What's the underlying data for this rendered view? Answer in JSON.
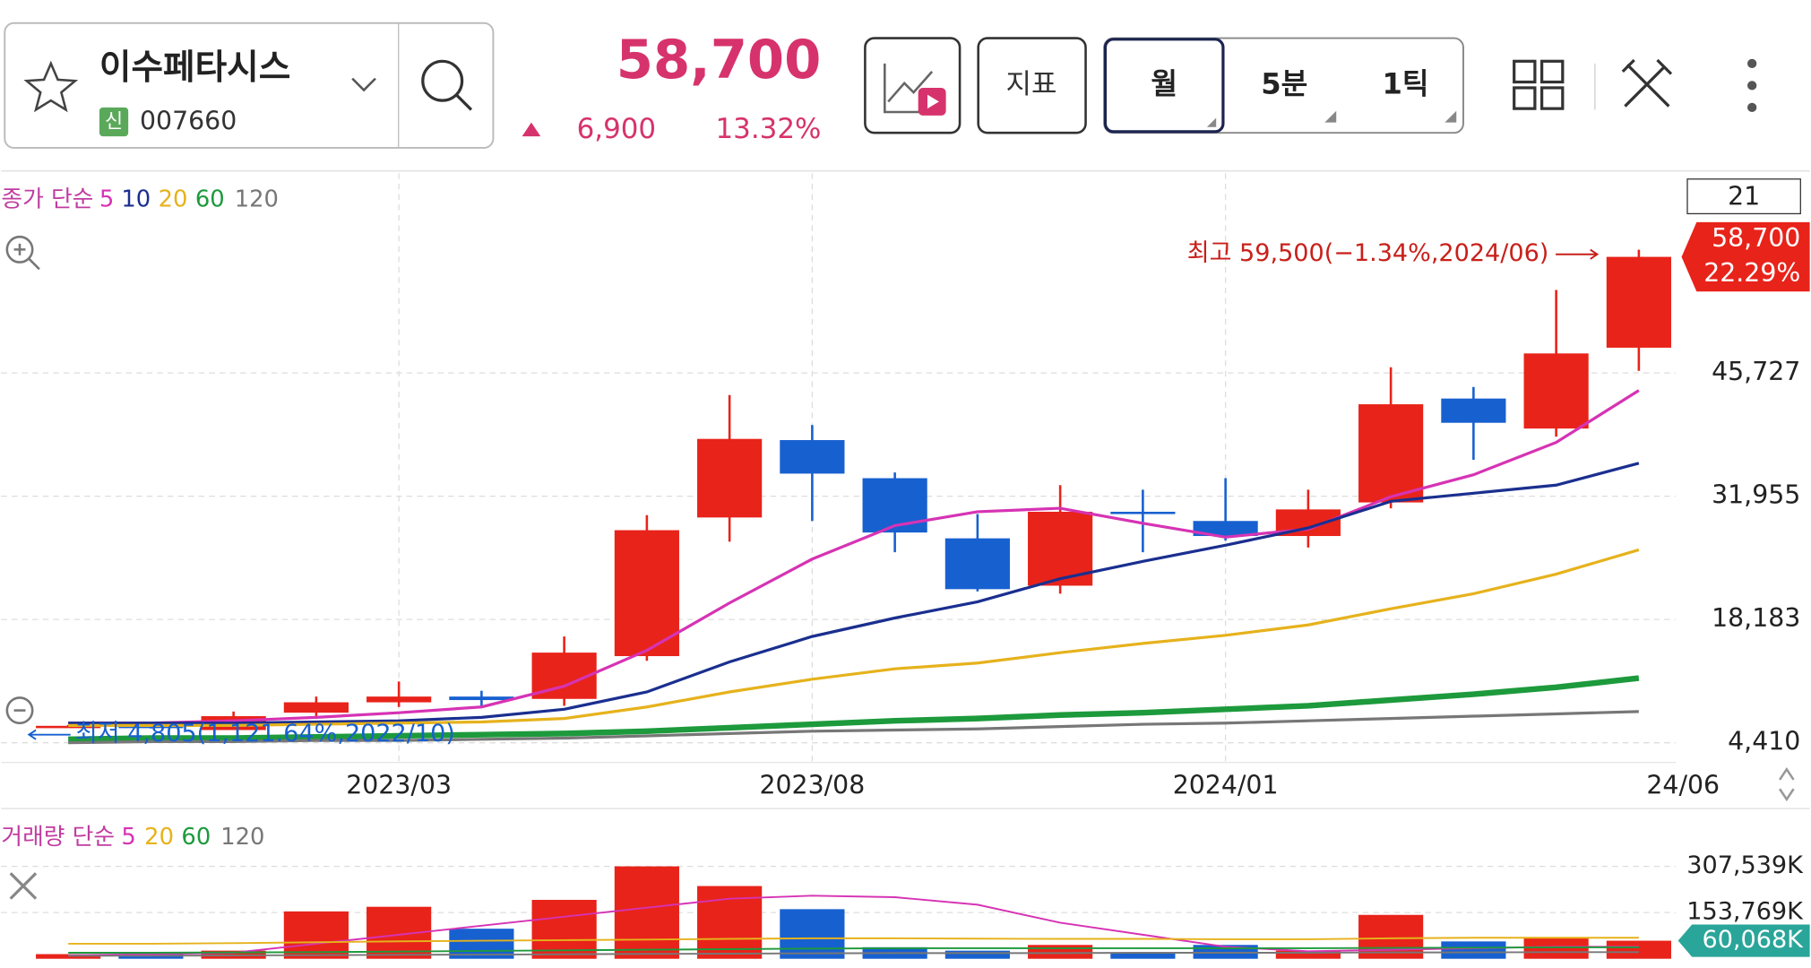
{
  "header": {
    "name": "이수페타시스",
    "badge": "신",
    "code": "007660",
    "price": "58,700",
    "change": "6,900",
    "change_pct": "13.32%"
  },
  "toolbar": {
    "indicator": "지표",
    "periods": [
      "월",
      "5분",
      "1틱"
    ]
  },
  "chart_data": {
    "type": "candlestick",
    "categories": [
      null,
      null,
      null,
      null,
      "2023/03",
      null,
      null,
      null,
      null,
      "2023/08",
      null,
      null,
      null,
      null,
      "2024/01",
      null,
      null,
      null,
      null,
      "24/06"
    ],
    "open": [
      6200,
      6300,
      5830,
      7770,
      8930,
      9570,
      9310,
      14090,
      29580,
      38230,
      33970,
      27250,
      21960,
      30220,
      29190,
      27510,
      31260,
      42870,
      39520,
      48550
    ],
    "high": [
      6400,
      6500,
      7900,
      9570,
      11250,
      10220,
      16280,
      29840,
      43260,
      39900,
      34610,
      29970,
      33190,
      32680,
      33970,
      32680,
      46360,
      44160,
      55000,
      59500
    ],
    "low": [
      6100,
      6000,
      5830,
      7380,
      8410,
      8410,
      8540,
      13570,
      26870,
      29190,
      25700,
      21320,
      21060,
      25700,
      27000,
      26220,
      30610,
      36030,
      38610,
      45970
    ],
    "close": [
      6300,
      6200,
      7380,
      8930,
      9570,
      9180,
      14480,
      28160,
      38360,
      34480,
      27900,
      21570,
      30220,
      29970,
      27510,
      30480,
      42230,
      40160,
      47910,
      58700
    ],
    "up_color": "#e8231a",
    "down_color": "#1760d0",
    "ylim": [
      2216,
      68040
    ],
    "yticks": [
      {
        "value": 4410,
        "label": "4,410"
      },
      {
        "value": 18183,
        "label": "18,183"
      },
      {
        "value": 31955,
        "label": "31,955"
      },
      {
        "value": 45727,
        "label": "45,727"
      }
    ],
    "grid": true,
    "ma_label": "종가 단순",
    "moving_averages": [
      {
        "name": "5",
        "color": "#d633b4",
        "values": [
          6604,
          6604,
          6862,
          7250,
          7766,
          8411,
          10734,
          14736,
          20027,
          24932,
          28675,
          30224,
          30611,
          28933,
          27384,
          28288,
          31902,
          34354,
          37968,
          43776
        ]
      },
      {
        "name": "10",
        "color": "#1a2f8f",
        "values": [
          6604,
          6604,
          6604,
          6733,
          6862,
          7250,
          8153,
          10089,
          13445,
          16284,
          18350,
          20157,
          22739,
          24675,
          26481,
          28417,
          31386,
          32289,
          33193,
          35645
        ]
      },
      {
        "name": "20",
        "color": "#e6b21c",
        "values": [
          6346,
          6346,
          6346,
          6475,
          6604,
          6733,
          7120,
          8411,
          10089,
          11509,
          12670,
          13316,
          14478,
          15510,
          16414,
          17575,
          19382,
          21060,
          23254,
          25965
        ]
      },
      {
        "name": "60",
        "color": "#1d9a3c",
        "values": [
          4797,
          4926,
          4926,
          5055,
          5184,
          5313,
          5443,
          5701,
          6088,
          6475,
          6862,
          7120,
          7507,
          7766,
          8153,
          8540,
          9186,
          9831,
          10605,
          11638
        ]
      },
      {
        "name": "120",
        "color": "#777777",
        "values": [
          4410,
          4539,
          4539,
          4668,
          4668,
          4797,
          4926,
          5184,
          5443,
          5701,
          5830,
          5959,
          6217,
          6475,
          6604,
          6862,
          7120,
          7378,
          7637,
          7895
        ]
      }
    ],
    "high_label": "최고 59,500(−1.34%,2024/06)",
    "low_label": "최저 4,805(1,121.64%,2022/10)",
    "last_price": {
      "value": 58700,
      "label": "58,700"
    },
    "last_change_label": "22.29%",
    "period_box": "21",
    "volume": {
      "ma_label": "거래량 단순",
      "values": [
        15400,
        15400,
        27000,
        157600,
        173000,
        100000,
        196000,
        307500,
        242000,
        165000,
        38400,
        27000,
        46000,
        19000,
        46000,
        27000,
        146000,
        57700,
        69000,
        60068
      ],
      "ylim": [
        0,
        346000
      ],
      "yticks": [
        {
          "value": 153769,
          "label": "153,769K"
        },
        {
          "value": 307539,
          "label": "307,539K"
        }
      ],
      "last": {
        "value": 60068,
        "label": "60,068K"
      },
      "moving_averages": [
        {
          "name": "5",
          "color": "#d633b4",
          "values": [
            12000,
            15000,
            20000,
            50000,
            80000,
            110000,
            140000,
            170000,
            200000,
            210000,
            205000,
            180000,
            120000,
            80000,
            40000,
            25000,
            30000,
            35000,
            40000,
            40000
          ]
        },
        {
          "name": "20",
          "color": "#e6b21c",
          "values": [
            50000,
            50000,
            52000,
            55000,
            58000,
            60000,
            62000,
            64000,
            66000,
            68000,
            68000,
            67000,
            66000,
            66000,
            65000,
            65000,
            68000,
            70000,
            70000,
            70000
          ]
        },
        {
          "name": "60",
          "color": "#1d9a3c",
          "values": [
            20000,
            20000,
            21000,
            22000,
            24000,
            26000,
            28000,
            30000,
            32000,
            34000,
            35000,
            35000,
            35000,
            35000,
            35000,
            35000,
            36000,
            37000,
            38000,
            38000
          ]
        },
        {
          "name": "120",
          "color": "#777777",
          "values": [
            10000,
            10000,
            11000,
            12000,
            13000,
            14000,
            15000,
            16000,
            17000,
            18000,
            19000,
            19000,
            19000,
            20000,
            20000,
            20000,
            21000,
            21000,
            22000,
            22000
          ]
        }
      ]
    }
  }
}
